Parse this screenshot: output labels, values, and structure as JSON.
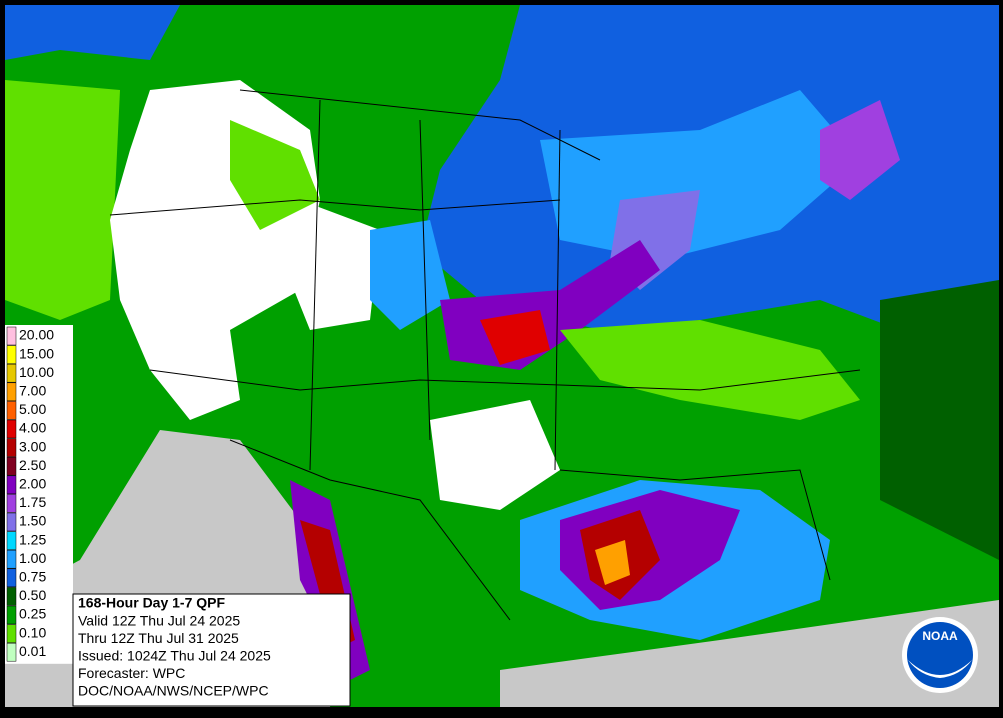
{
  "legend": {
    "items": [
      {
        "label": "20.00",
        "color": "#ffc0e0"
      },
      {
        "label": "15.00",
        "color": "#ffff00"
      },
      {
        "label": "10.00",
        "color": "#e6c800"
      },
      {
        "label": "7.00",
        "color": "#ffa000"
      },
      {
        "label": "5.00",
        "color": "#ff6000"
      },
      {
        "label": "4.00",
        "color": "#e00000"
      },
      {
        "label": "3.00",
        "color": "#b40000"
      },
      {
        "label": "2.50",
        "color": "#800020"
      },
      {
        "label": "2.00",
        "color": "#8000c0"
      },
      {
        "label": "1.75",
        "color": "#a040e0"
      },
      {
        "label": "1.50",
        "color": "#8070e8"
      },
      {
        "label": "1.25",
        "color": "#00d8ff"
      },
      {
        "label": "1.00",
        "color": "#20a0ff"
      },
      {
        "label": "0.75",
        "color": "#1060e0"
      },
      {
        "label": "0.50",
        "color": "#006000"
      },
      {
        "label": "0.25",
        "color": "#00a000"
      },
      {
        "label": "0.10",
        "color": "#60e000"
      },
      {
        "label": "0.01",
        "color": "#c0ffc0"
      }
    ]
  },
  "info": {
    "title": "168-Hour Day 1-7 QPF",
    "lines": [
      "Valid 12Z Thu Jul 24 2025",
      "Thru 12Z Thu Jul 31 2025",
      "Issued: 1024Z Thu Jul 24 2025",
      "Forecaster: WPC",
      "DOC/NOAA/NWS/NCEP/WPC"
    ]
  },
  "logo": {
    "text": "NOAA"
  }
}
